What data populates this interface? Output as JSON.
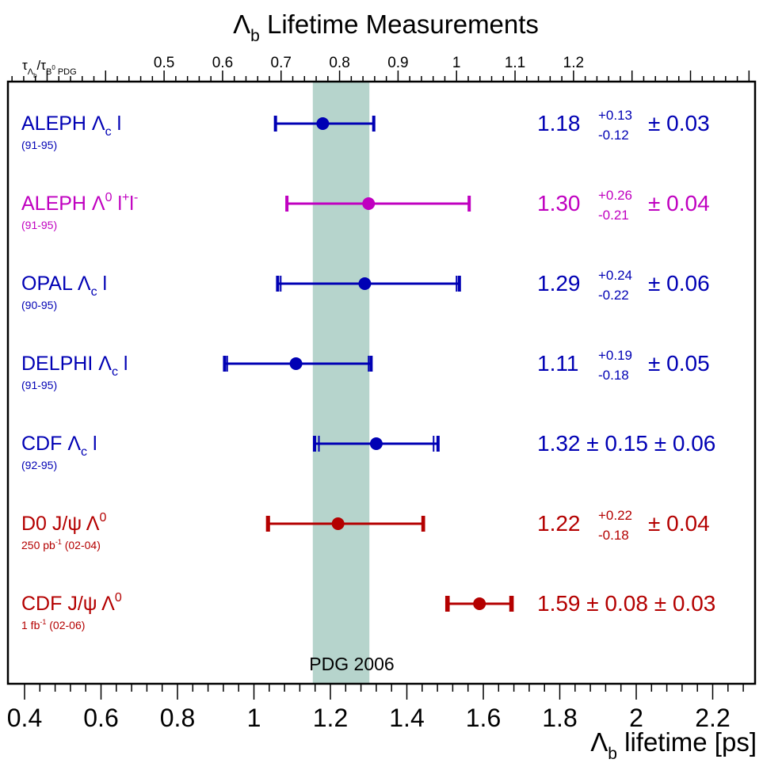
{
  "chart_data": {
    "type": "errorbar",
    "title": "Λb Lifetime Measurements",
    "title_parts": {
      "main": "Λ",
      "sub": "b",
      "rest": " Lifetime Measurements"
    },
    "xlabel_parts": {
      "main": "Λ",
      "sub": "b",
      "rest": " lifetime [ps]"
    },
    "x_range": [
      0.3,
      2.35
    ],
    "x_ticks": [
      "0.4",
      "0.6",
      "0.8",
      "1",
      "1.2",
      "1.4",
      "1.6",
      "1.8",
      "2",
      "2.2"
    ],
    "x_tick_values": [
      0.4,
      0.6,
      0.8,
      1.0,
      1.2,
      1.4,
      1.6,
      1.8,
      2.0,
      2.2
    ],
    "top_axis": {
      "label_parts": {
        "tau1": "τ",
        "sub1": "Λ",
        "subsub1": "b",
        "slash": "/",
        "tau2": "τ",
        "sub2": "B",
        "sup2": "0",
        "pdg": " PDG"
      },
      "ratio_ticks": [
        "0.5",
        "0.6",
        "0.7",
        "0.8",
        "0.9",
        "1",
        "1.1",
        "1.2"
      ],
      "ratio_values": [
        0.5,
        0.6,
        0.7,
        0.8,
        0.9,
        1.0,
        1.1,
        1.2
      ],
      "b0_lifetime_ps": 1.53
    },
    "band": {
      "label": "PDG 2006",
      "low": 1.154,
      "high": 1.302,
      "color": "#b6d4cc"
    },
    "measurements": [
      {
        "experiment": "ALEPH",
        "particle": "Λ",
        "particle_sub": "c",
        "particle_sup": "",
        "suffix": " l",
        "period": "(91-95)",
        "central_label": "1.18",
        "plus": "+0.13",
        "minus": "-0.12",
        "sym_stat": "",
        "syst": "0.03",
        "value": 1.18,
        "stat_low": 0.12,
        "stat_high": 0.13,
        "systematic": 0.03,
        "color": "#0000b4"
      },
      {
        "experiment": "ALEPH",
        "particle": "Λ",
        "particle_sub": "",
        "particle_sup": "0",
        "suffix": " l",
        "suffix_sup": "+",
        "suffix2": "l",
        "suffix2_sup": "-",
        "period": "(91-95)",
        "central_label": "1.30",
        "plus": "+0.26",
        "minus": "-0.21",
        "sym_stat": "",
        "syst": "0.04",
        "value": 1.3,
        "stat_low": 0.21,
        "stat_high": 0.26,
        "systematic": 0.04,
        "color": "#c000c0"
      },
      {
        "experiment": "OPAL",
        "particle": "Λ",
        "particle_sub": "c",
        "particle_sup": "",
        "suffix": " l",
        "period": "(90-95)",
        "central_label": "1.29",
        "plus": "+0.24",
        "minus": "-0.22",
        "sym_stat": "",
        "syst": "0.06",
        "value": 1.29,
        "stat_low": 0.22,
        "stat_high": 0.24,
        "systematic": 0.06,
        "color": "#0000b4"
      },
      {
        "experiment": "DELPHI",
        "particle": "Λ",
        "particle_sub": "c",
        "particle_sup": "",
        "suffix": " l",
        "period": "(91-95)",
        "central_label": "1.11",
        "plus": "+0.19",
        "minus": "-0.18",
        "sym_stat": "",
        "syst": "0.05",
        "value": 1.11,
        "stat_low": 0.18,
        "stat_high": 0.19,
        "systematic": 0.05,
        "color": "#0000b4"
      },
      {
        "experiment": "CDF",
        "particle": "Λ",
        "particle_sub": "c",
        "particle_sup": "",
        "suffix": " l",
        "period": "(92-95)",
        "central_label": "1.32",
        "plus": "",
        "minus": "",
        "sym_stat": "0.15",
        "syst": "0.06",
        "value": 1.32,
        "stat_low": 0.15,
        "stat_high": 0.15,
        "systematic": 0.06,
        "color": "#0000b4"
      },
      {
        "experiment": "D0",
        "particle": "J/ψ Λ",
        "particle_sub": "",
        "particle_sup": "0",
        "suffix": "",
        "period_parts": [
          "250 pb",
          "-1",
          " (02-04)"
        ],
        "central_label": "1.22",
        "plus": "+0.22",
        "minus": "-0.18",
        "sym_stat": "",
        "syst": "0.04",
        "value": 1.22,
        "stat_low": 0.18,
        "stat_high": 0.22,
        "systematic": 0.04,
        "color": "#b40000"
      },
      {
        "experiment": "CDF",
        "particle": "J/ψ Λ",
        "particle_sub": "",
        "particle_sup": "0",
        "suffix": "",
        "period_parts": [
          "1 fb",
          "-1",
          " (02-06)"
        ],
        "central_label": "1.59",
        "plus": "",
        "minus": "",
        "sym_stat": "0.08",
        "syst": "0.03",
        "value": 1.59,
        "stat_low": 0.08,
        "stat_high": 0.08,
        "systematic": 0.03,
        "color": "#b40000"
      }
    ],
    "pm_symbol": "±",
    "grid": false,
    "legend": "none"
  }
}
